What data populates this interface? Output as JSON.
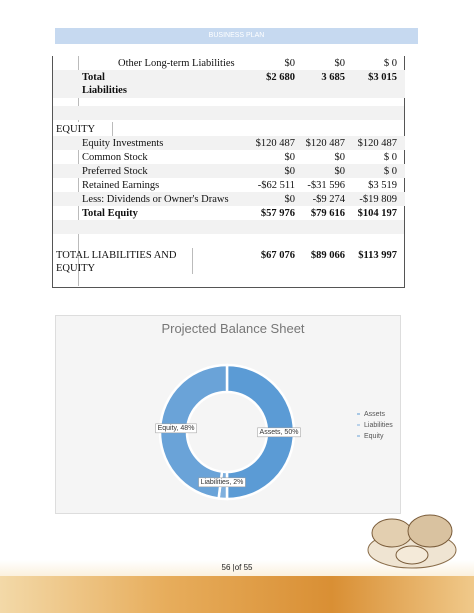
{
  "header": {
    "title": "BUSINESS PLAN"
  },
  "table": {
    "rows": [
      [
        "Other Long-term Liabilities",
        "$0",
        "$0",
        "$ 0"
      ],
      [
        "Total Liabilities",
        "$2 680",
        "3 685",
        "$3 015"
      ],
      [
        "EQUITY"
      ],
      [
        "Equity Investments",
        "$120 487",
        "$120 487",
        "$120 487"
      ],
      [
        "Common Stock",
        "$0",
        "$0",
        "$ 0"
      ],
      [
        "Preferred Stock",
        "$0",
        "$0",
        "$ 0"
      ],
      [
        "Retained Earnings",
        "-$62 511",
        "-$31 596",
        "$3 519"
      ],
      [
        "Less:  Dividends or Owner's Draws",
        "$0",
        "-$9 274",
        "-$19 809"
      ],
      [
        "Total Equity",
        "$57 976",
        "$79 616",
        "$104 197"
      ],
      [
        "TOTAL LIABILITIES AND EQUITY",
        "$67 076",
        "$89 066",
        "$113 997"
      ]
    ]
  },
  "chart": {
    "type": "donut",
    "title": "Projected Balance Sheet",
    "categories": [
      "Assets",
      "Liabilities",
      "Equity"
    ],
    "values": [
      50,
      2,
      48
    ],
    "value_labels": [
      "Assets, 50%",
      "Liabilities, 2%",
      "Equity, 48%"
    ],
    "colors": [
      "#5b9bd5",
      "#7fb0de",
      "#6aa3d8"
    ]
  },
  "footer": {
    "page": "56 |of 55"
  }
}
